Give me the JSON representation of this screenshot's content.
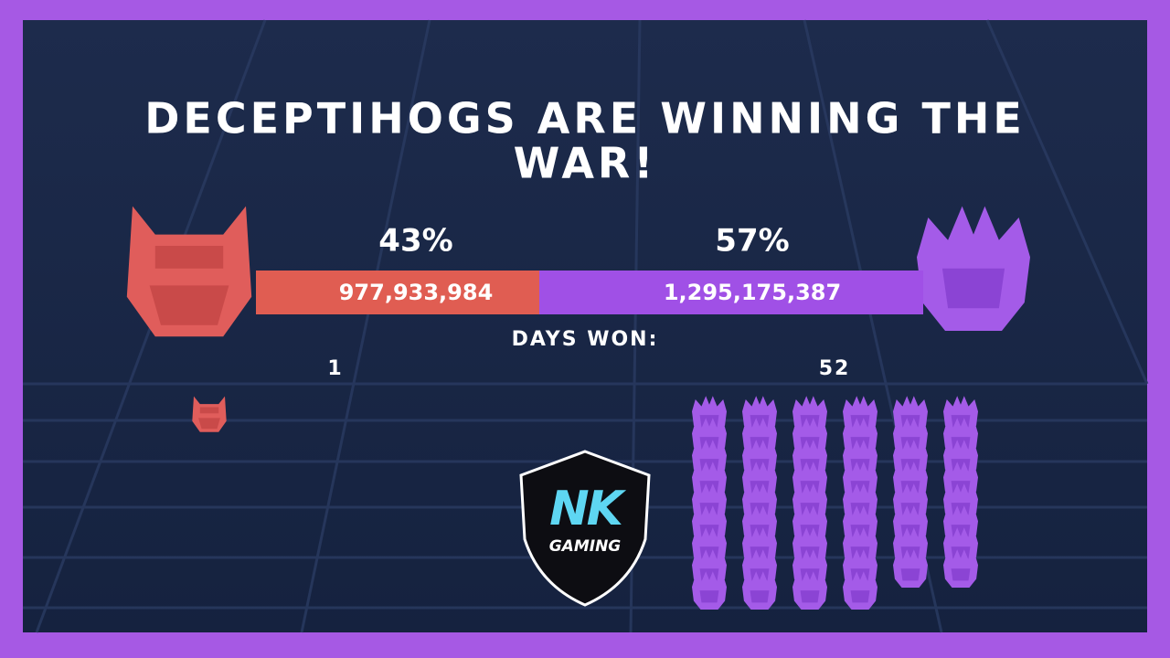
{
  "header": {
    "title_line1": "DECEPTIHOGS ARE WINNING THE",
    "title_line2": "WAR!"
  },
  "left_team": {
    "percent": "43%",
    "score": "977,933,984",
    "days_won": 1
  },
  "right_team": {
    "percent": "57%",
    "score": "1,295,175,387",
    "days_won": 52
  },
  "days_won_label": "DAYS WON:",
  "logo": {
    "letters": "NK",
    "subtitle": "GAMING"
  }
}
